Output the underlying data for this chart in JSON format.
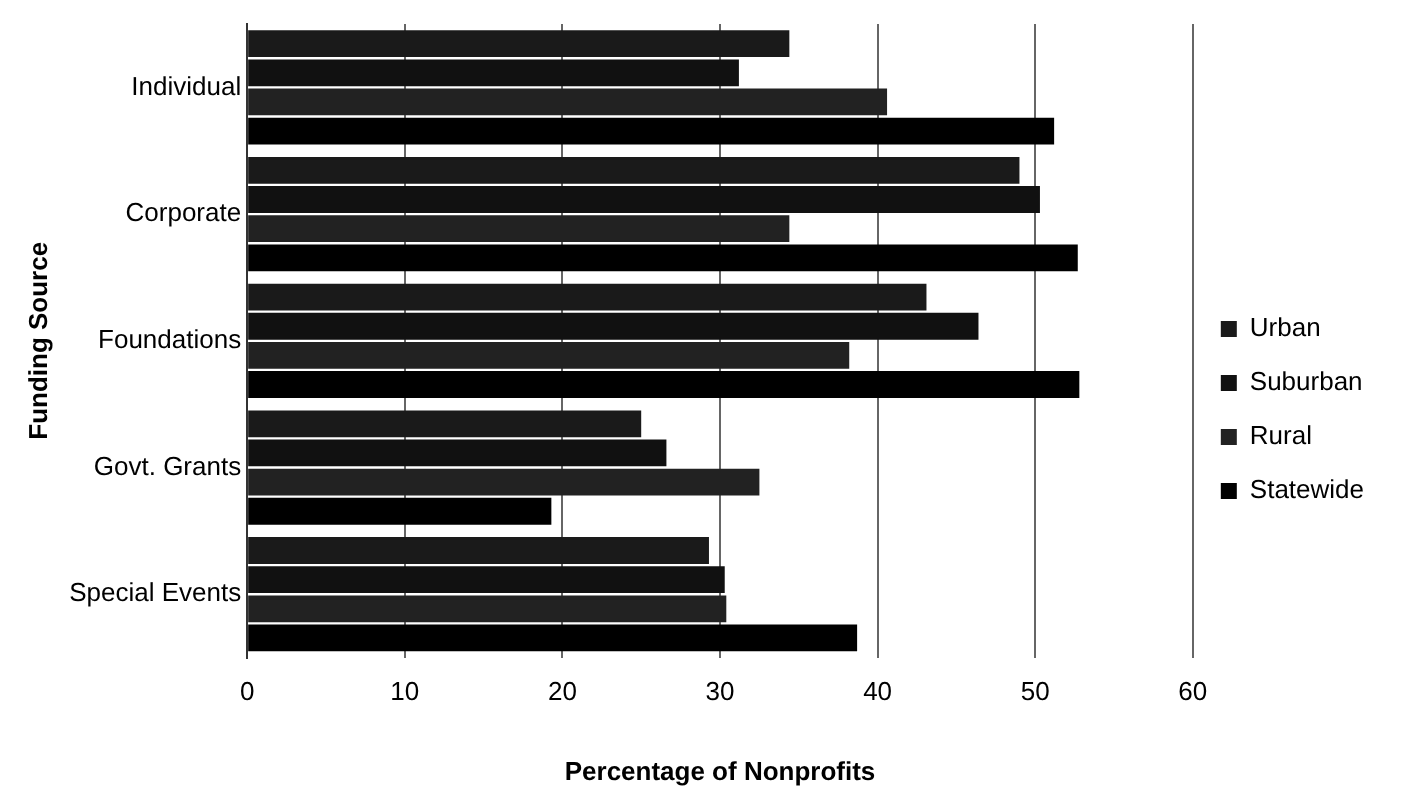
{
  "chart_data": {
    "type": "bar",
    "orientation": "horizontal",
    "xlabel": "Percentage of Nonprofits",
    "ylabel": "Funding Source",
    "categories": [
      "Individual",
      "Corporate",
      "Foundations",
      "Govt. Grants",
      "Special Events"
    ],
    "series": [
      {
        "name": "Urban",
        "color": "#1a1a1a",
        "values": [
          34.4,
          49,
          43.1,
          25,
          29.3
        ]
      },
      {
        "name": "Suburban",
        "color": "#111111",
        "values": [
          31.2,
          50.3,
          46.4,
          26.6,
          30.3
        ]
      },
      {
        "name": "Rural",
        "color": "#222222",
        "values": [
          40.6,
          34.4,
          38.2,
          32.5,
          30.4
        ]
      },
      {
        "name": "Statewide",
        "color": "#000000",
        "values": [
          51.2,
          52.7,
          52.8,
          19.3,
          38.7
        ]
      }
    ],
    "xlim": [
      0,
      60
    ],
    "xticks": [
      0,
      10,
      20,
      30,
      40,
      50,
      60
    ],
    "grid": "x",
    "legend": "right"
  }
}
